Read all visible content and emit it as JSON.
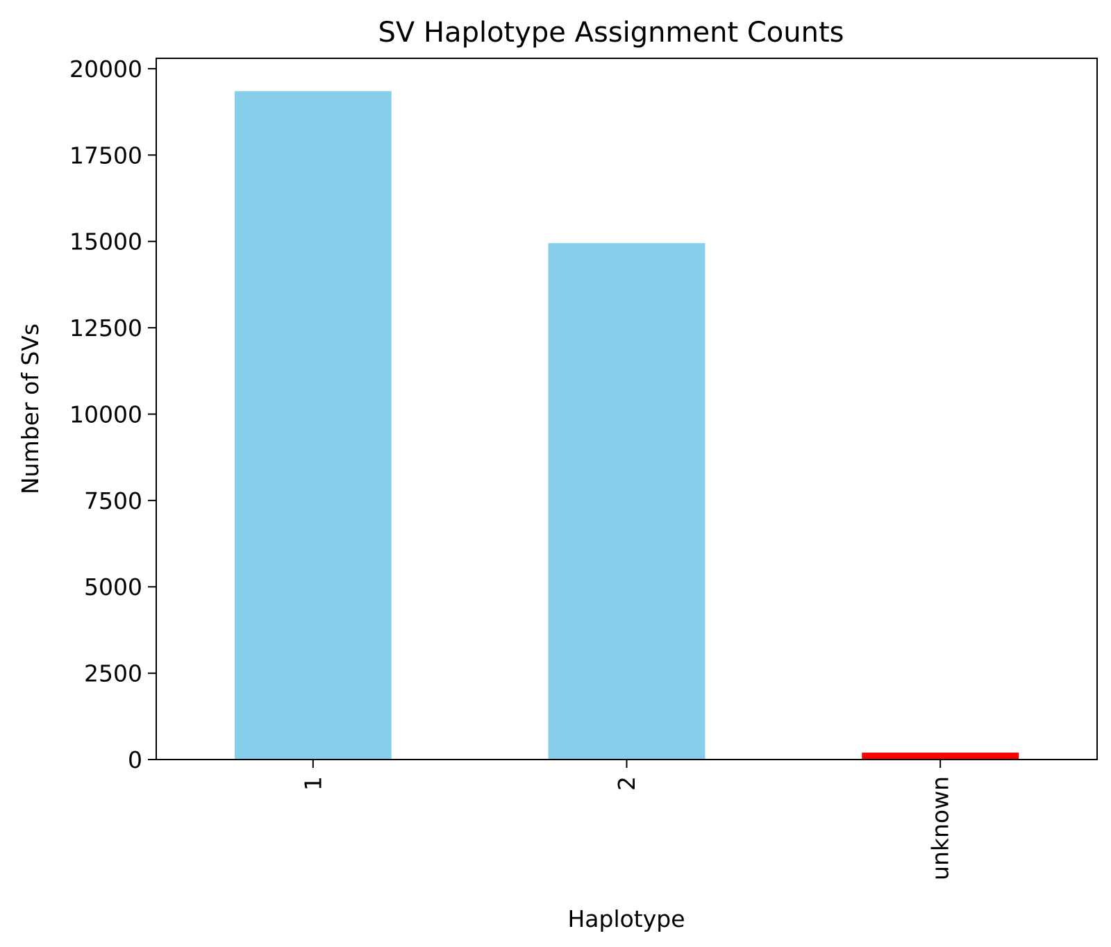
{
  "chart_data": {
    "type": "bar",
    "title": "SV Haplotype Assignment Counts",
    "xlabel": "Haplotype",
    "ylabel": "Number of SVs",
    "categories": [
      "1",
      "2",
      "unknown"
    ],
    "values": [
      19350,
      14950,
      200
    ],
    "bar_colors": [
      "#87ceeb",
      "#87ceeb",
      "#ff0000"
    ],
    "ylim": [
      0,
      20300
    ],
    "yticks": [
      0,
      2500,
      5000,
      7500,
      10000,
      12500,
      15000,
      17500,
      20000
    ],
    "grid": false,
    "x_tick_rotation": "vertical"
  }
}
